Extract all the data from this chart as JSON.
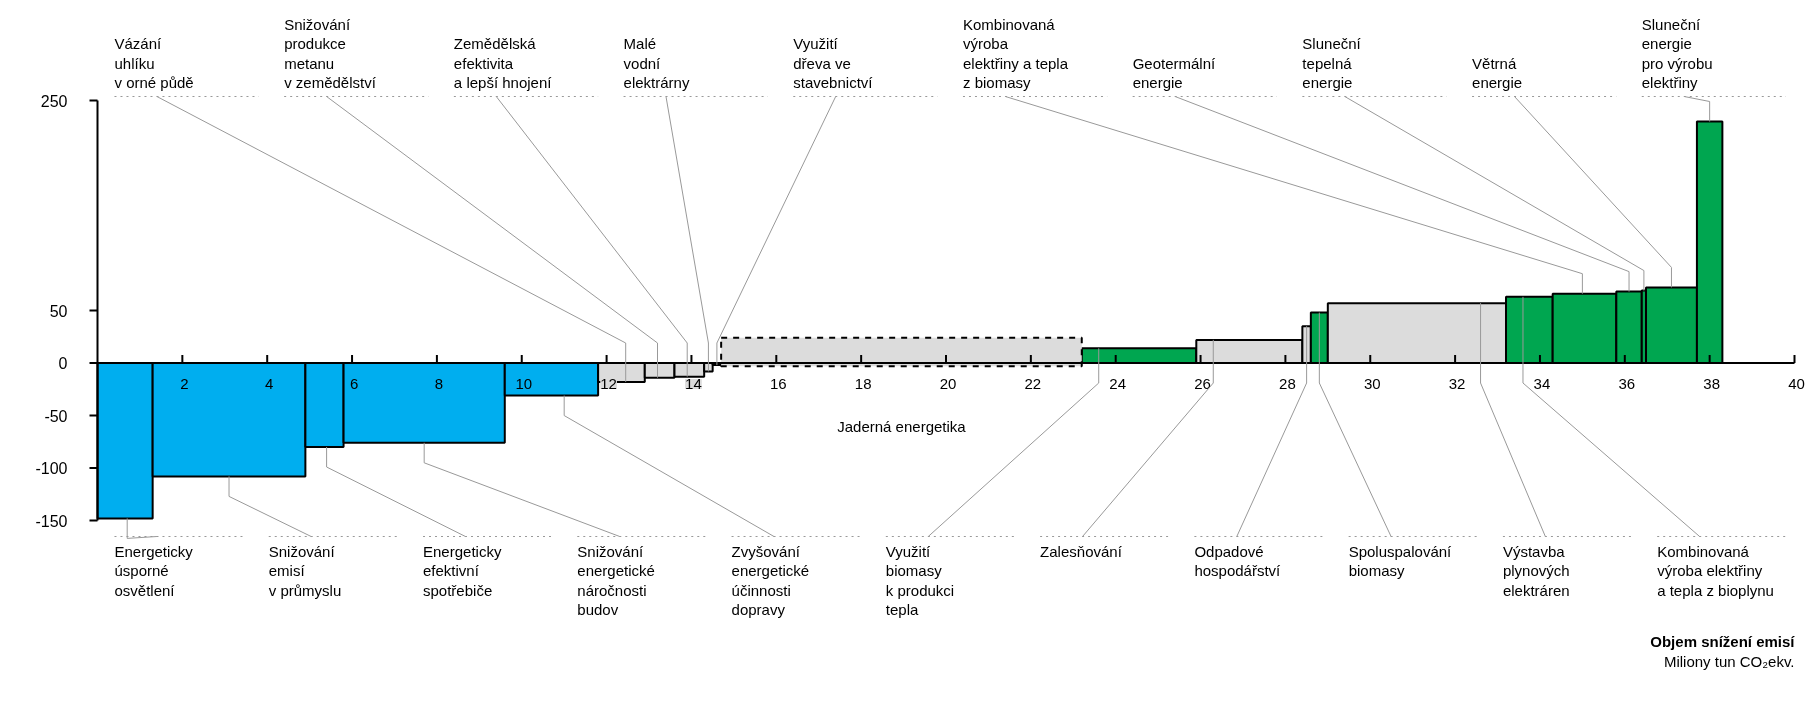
{
  "chart_data": {
    "type": "histogram",
    "xlim": [
      0,
      40
    ],
    "xticks": [
      2,
      4,
      6,
      8,
      10,
      12,
      14,
      16,
      18,
      20,
      22,
      24,
      26,
      28,
      30,
      32,
      34,
      36,
      38,
      40
    ],
    "ylim": [
      -150,
      250
    ],
    "yticks": [
      -150,
      -100,
      -50,
      0,
      50,
      250
    ],
    "bins": [
      0,
      1.3,
      4.9,
      5.8,
      9.6,
      11.8,
      12.9,
      13.6,
      14.3,
      14.5,
      14.7,
      23.2,
      25.9,
      28.4,
      28.6,
      29.0,
      33.2,
      34.3,
      35.8,
      36.4,
      36.5,
      37.7,
      38.3
    ],
    "series": [
      {
        "colors": [
          "#00aeef",
          "#00aeef",
          "#00aeef",
          "#00aeef",
          "#00aeef",
          "#dcdcdc",
          "#dcdcdc",
          "#dcdcdc",
          "#dcdcdc",
          "#dcdcdc",
          "#dcdcdc",
          "#00a650",
          "#dcdcdc",
          "#dcdcdc",
          "#00a650",
          "#dcdcdc",
          "#00a650",
          "#00a650",
          "#00a650",
          "#00a650",
          "#00a650",
          "#00a650"
        ],
        "values": [
          -148,
          -108,
          -80,
          -76,
          -31,
          -18,
          -14,
          -13,
          -8,
          -2,
          null,
          14,
          22,
          35,
          48,
          57,
          63,
          66,
          68,
          69,
          72,
          230
        ]
      },
      {
        "name": "Jaderná energetika",
        "color": "#dcdcdc",
        "line_style": "dashed",
        "base": [
          null,
          null,
          null,
          null,
          null,
          null,
          null,
          null,
          null,
          null,
          -3,
          null,
          null,
          null,
          null,
          null,
          null,
          null,
          null,
          null,
          null,
          null
        ],
        "values": [
          null,
          null,
          null,
          null,
          null,
          null,
          null,
          null,
          null,
          null,
          27,
          null,
          null,
          null,
          null,
          null,
          null,
          null,
          null,
          null,
          null,
          null
        ]
      }
    ],
    "annotations": [
      {
        "text": "Vázání\nuhlíku\nv orné půdě",
        "x": 12.45,
        "y": -18
      },
      {
        "text": "Snižování\nprodukce\nmetanu\nv zemědělství",
        "x": 13.2,
        "y": -14
      },
      {
        "text": "Zemědělská\nefektivita\na lepší hnojení",
        "x": 13.9,
        "y": -13
      },
      {
        "text": "Malé\nvodní\nelektrárny",
        "x": 14.4,
        "y": -8
      },
      {
        "text": "Využití\ndřeva ve\nstavebnictví",
        "x": 14.6,
        "y": -2
      },
      {
        "text": "Kombinovaná\nvýroba\nelektřiny a tepla\nz biomasy",
        "x": 35.0,
        "y": 66
      },
      {
        "text": "Geotermální\nenergie",
        "x": 36.1,
        "y": 68
      },
      {
        "text": "Sluneční\ntepelná\nenergie",
        "x": 36.45,
        "y": 69
      },
      {
        "text": "Větrná\nenergie",
        "x": 37.1,
        "y": 72
      },
      {
        "text": "Sluneční\nenergie\npro výrobu\nelektřiny",
        "x": 38.0,
        "y": 230
      },
      {
        "text": "Energeticky\núsporné\nosvětlení",
        "x": 0.7,
        "y": -148
      },
      {
        "text": "Snižování\nemisí\nv průmyslu",
        "x": 3.1,
        "y": -108
      },
      {
        "text": "Energeticky\nefektivní\nspotřebiče",
        "x": 5.4,
        "y": -80
      },
      {
        "text": "Snižování\nenergetické\nnáročnosti\nbudov",
        "x": 7.7,
        "y": -76
      },
      {
        "text": "Zvyšování\nenergetické\núčinnosti\ndopravy",
        "x": 11.0,
        "y": -31
      },
      {
        "text": "Využití\nbiomasy\nk produkci\ntepla",
        "x": 23.6,
        "y": 14
      },
      {
        "text": "Zalesňování",
        "x": 26.3,
        "y": 22
      },
      {
        "text": "Odpadové\nhospodářství",
        "x": 28.5,
        "y": 35
      },
      {
        "text": "Spoluspalování\nbiomasy",
        "x": 28.8,
        "y": 48
      },
      {
        "text": "Výstavba\nplynových\nelektráren",
        "x": 32.6,
        "y": 57
      },
      {
        "text": "Kombinovaná\nvýroba elektřiny\na tepla z bioplynu",
        "x": 33.6,
        "y": 63
      },
      "Objem snížení emisí",
      "Miliony tun CO₂ekv."
    ]
  }
}
